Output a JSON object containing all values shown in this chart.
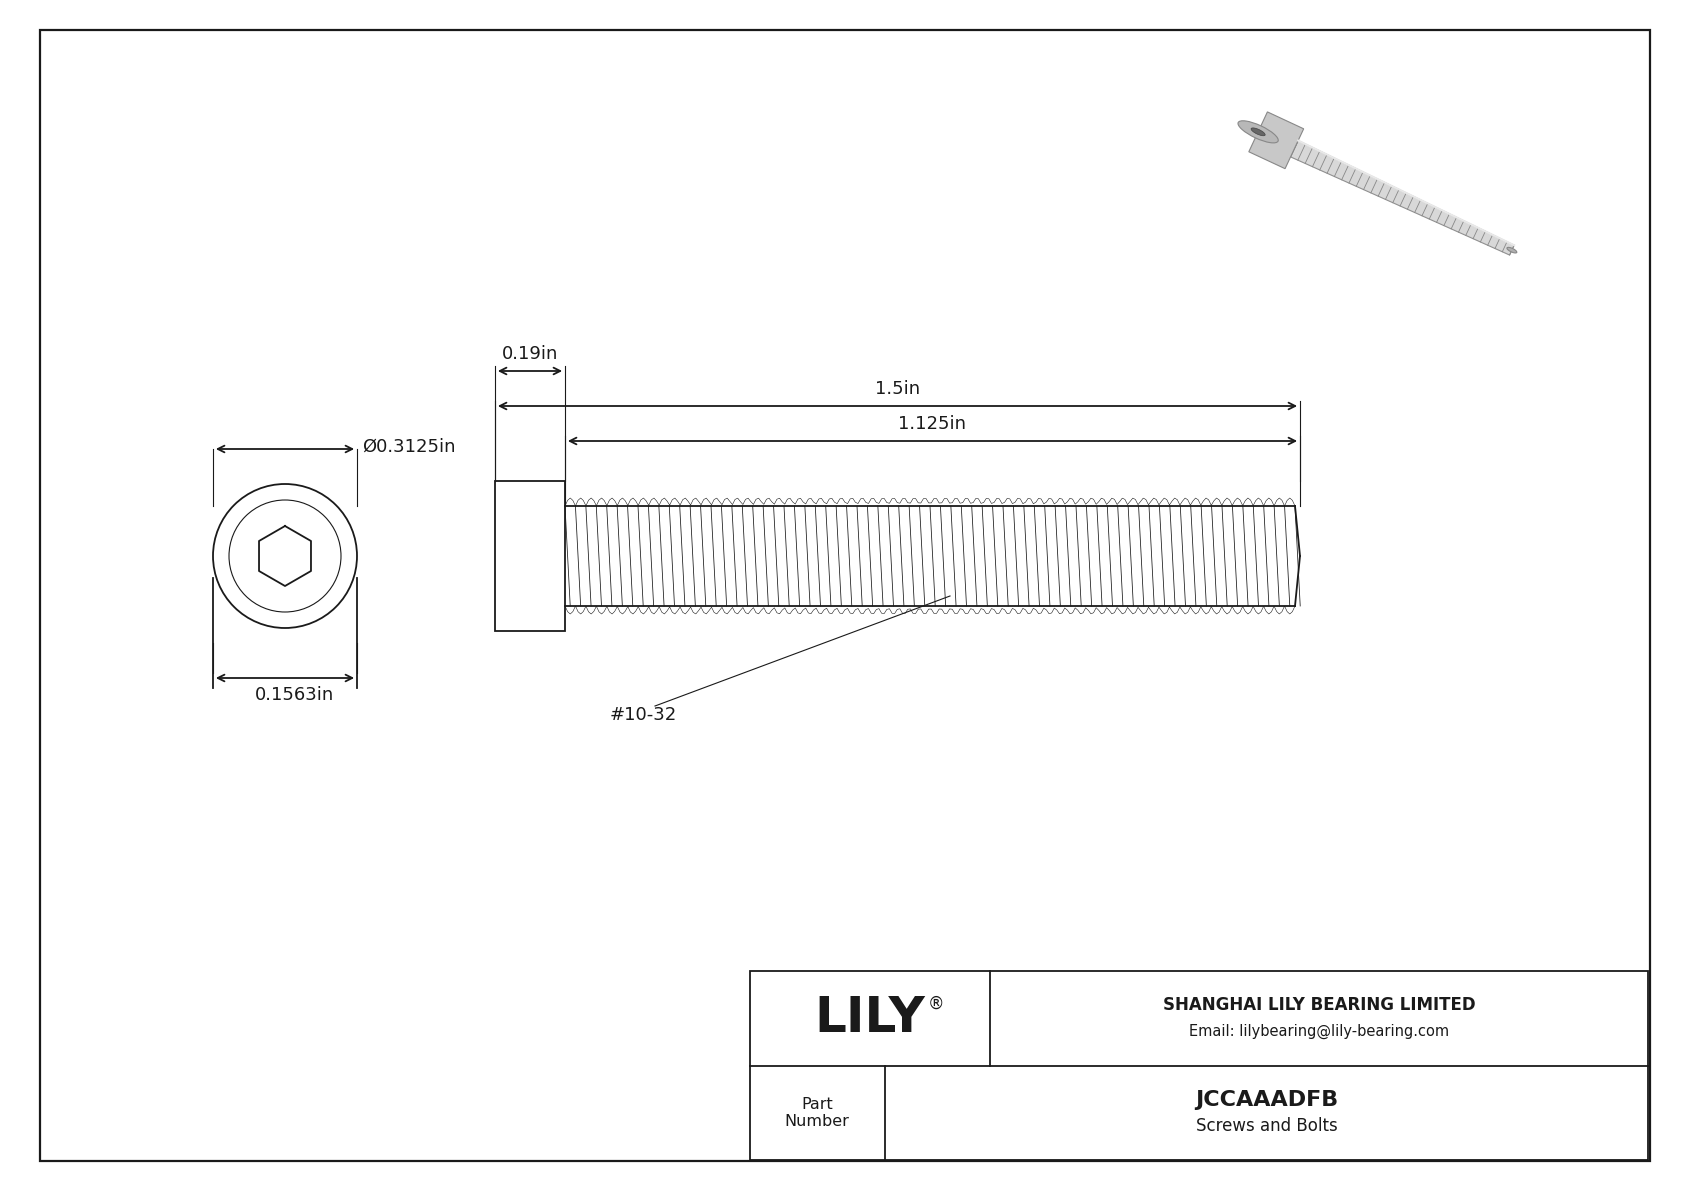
{
  "bg_color": "#ffffff",
  "draw_color": "#1a1a1a",
  "company": "SHANGHAI LILY BEARING LIMITED",
  "email": "Email: lilybearing@lily-bearing.com",
  "part_number": "JCCAAADFB",
  "part_category": "Screws and Bolts",
  "part_label": "Part\nNumber",
  "reg_symbol": "®",
  "dim_head_diameter": "Ø0.3125in",
  "dim_head_height": "0.1563in",
  "dim_total_length": "1.5in",
  "dim_thread_length": "1.125in",
  "dim_head_width": "0.19in",
  "thread_label": "#10-32",
  "line_width": 1.3,
  "thin_line": 0.8,
  "font_size": 13
}
